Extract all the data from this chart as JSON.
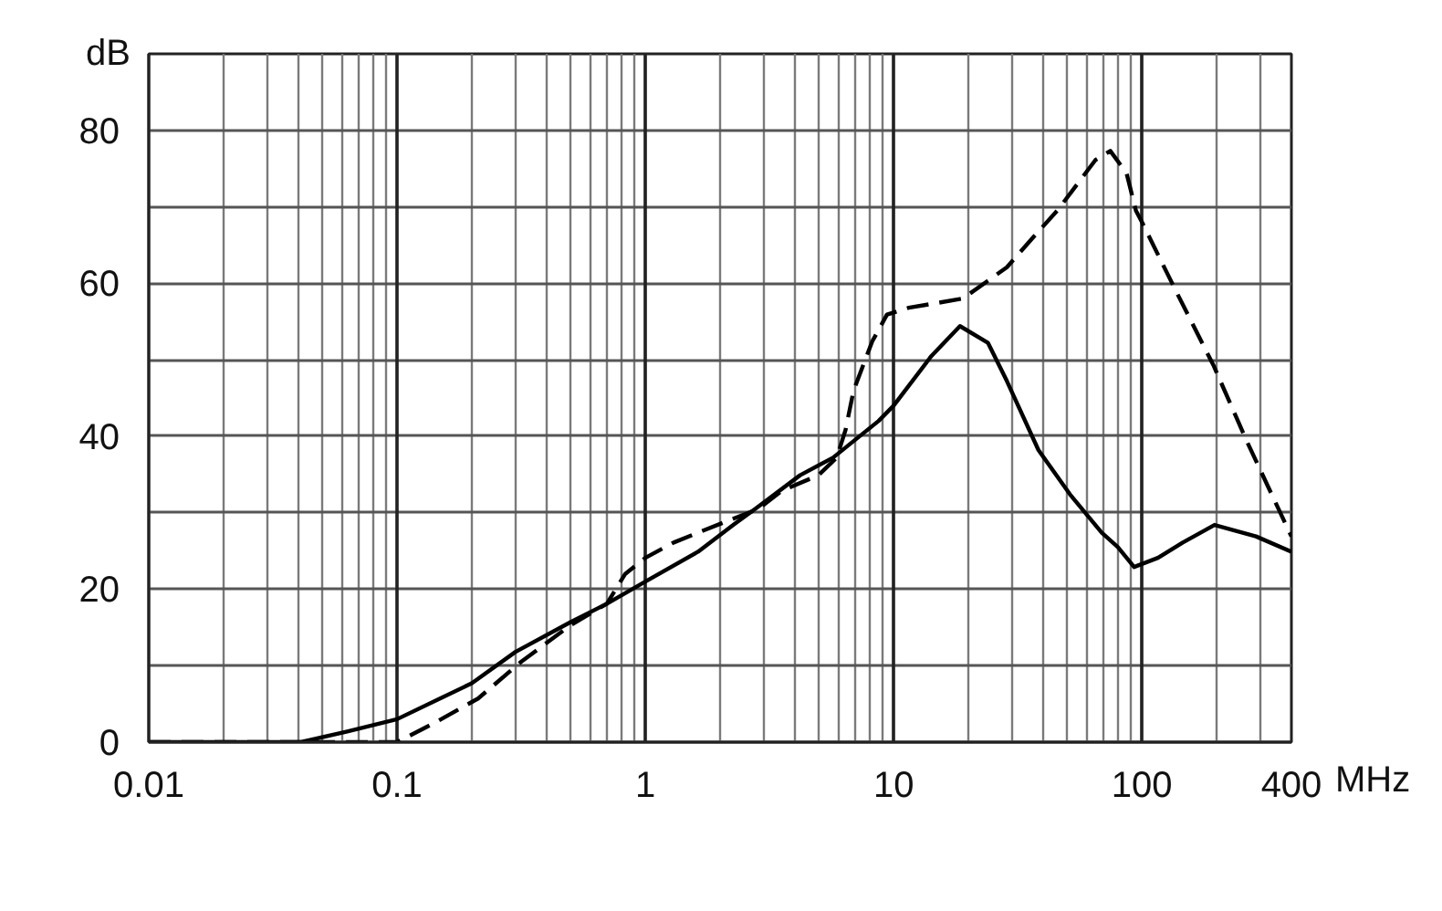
{
  "chart_data": {
    "type": "line",
    "ylabel": "dB",
    "xlabel": "MHz",
    "log": "x",
    "xlim": [
      0.01,
      400
    ],
    "ylim": [
      0,
      90
    ],
    "grid": true,
    "xticks": [
      0.01,
      {
        "value": 0.02,
        "label": null
      },
      {
        "value": 0.03,
        "label": null
      },
      {
        "value": 0.04,
        "label": null
      },
      {
        "value": 0.05,
        "label": null
      },
      {
        "value": 0.06,
        "label": null
      },
      {
        "value": 0.07,
        "label": null
      },
      {
        "value": 0.08,
        "label": null
      },
      {
        "value": 0.09,
        "label": null
      },
      0.1,
      {
        "value": 0.2,
        "label": null
      },
      {
        "value": 0.3,
        "label": null
      },
      {
        "value": 0.4,
        "label": null
      },
      {
        "value": 0.5,
        "label": null
      },
      {
        "value": 0.6,
        "label": null
      },
      {
        "value": 0.7,
        "label": null
      },
      {
        "value": 0.8,
        "label": null
      },
      {
        "value": 0.9,
        "label": null
      },
      1,
      {
        "value": 2,
        "label": null
      },
      {
        "value": 3,
        "label": null
      },
      {
        "value": 4,
        "label": null
      },
      {
        "value": 5,
        "label": null
      },
      {
        "value": 6,
        "label": null
      },
      {
        "value": 7,
        "label": null
      },
      {
        "value": 8,
        "label": null
      },
      {
        "value": 9,
        "label": null
      },
      10,
      {
        "value": 20,
        "label": null
      },
      {
        "value": 30,
        "label": null
      },
      {
        "value": 40,
        "label": null
      },
      {
        "value": 50,
        "label": null
      },
      {
        "value": 60,
        "label": null
      },
      {
        "value": 70,
        "label": null
      },
      {
        "value": 80,
        "label": null
      },
      {
        "value": 90,
        "label": null
      },
      100,
      {
        "value": 200,
        "label": null
      },
      {
        "value": 300,
        "label": null
      },
      400
    ],
    "yticks": [
      0,
      {
        "value": 10,
        "label": null
      },
      20,
      {
        "value": 30,
        "label": null
      },
      40,
      {
        "value": 50,
        "label": null
      },
      60,
      {
        "value": 70,
        "label": null
      },
      80,
      {
        "value": 90,
        "label": null
      }
    ],
    "series": [
      {
        "color": "#000000",
        "line_style": "solid",
        "x": [
          0.01,
          0.041,
          0.063,
          0.1,
          0.2,
          0.3,
          0.5,
          0.7,
          1.0,
          1.63,
          2.28,
          2.77,
          4.2,
          5.7,
          8.7,
          10,
          14.2,
          18.5,
          24,
          28.6,
          38.3,
          51.3,
          68.8,
          80,
          93,
          116,
          146,
          196,
          288,
          400
        ],
        "values": [
          0,
          0,
          1.4,
          3.0,
          7.7,
          11.8,
          15.7,
          18.1,
          21,
          24.9,
          28.5,
          30.5,
          34.9,
          37.2,
          42.0,
          44,
          50.5,
          54.4,
          52.2,
          47.2,
          38.2,
          32.4,
          27.4,
          25.5,
          22.9,
          24.1,
          26.1,
          28.4,
          26.9,
          24.9
        ]
      },
      {
        "color": "#000000",
        "line_style": "dashed",
        "x": [
          0.01,
          0.1,
          0.143,
          0.212,
          0.316,
          0.5,
          0.7,
          0.83,
          1.0,
          1.3,
          1.72,
          2.85,
          3.56,
          4.98,
          5.9,
          6.4,
          6.9,
          8.2,
          9.4,
          11.5,
          19,
          28.6,
          36,
          45.6,
          64.9,
          74.6,
          86.7,
          94.6,
          100,
          138,
          194,
          264,
          400
        ],
        "values": [
          0,
          0,
          2.6,
          5.7,
          10.5,
          15.3,
          18.1,
          22.0,
          24.1,
          26.1,
          27.7,
          30.5,
          32.9,
          34.9,
          37.2,
          40.8,
          46.0,
          52.4,
          55.9,
          56.8,
          58.0,
          62.1,
          65.8,
          69.5,
          76.1,
          77.3,
          74.4,
          69.5,
          68,
          58.8,
          49.3,
          39.4,
          26.9
        ]
      }
    ]
  }
}
